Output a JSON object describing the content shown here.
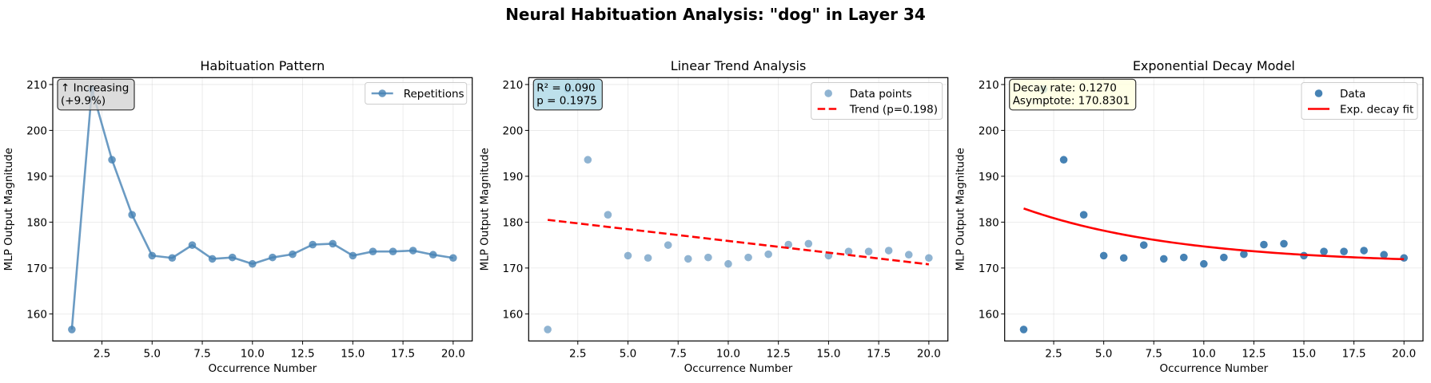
{
  "figure": {
    "suptitle": "Neural Habituation Analysis: \"dog\" in Layer 34"
  },
  "colors": {
    "data_blue": "#4682b4",
    "trend_red": "#ff0000",
    "box_gray": "#d3d3d3",
    "box_lightblue": "#add8e6",
    "box_lightyellow": "#ffffe0"
  },
  "chart_data": [
    {
      "type": "line",
      "title": "Habituation Pattern",
      "xlabel": "Occurrence Number",
      "ylabel": "MLP Output Magnitude",
      "xlim": [
        0.05,
        20.95
      ],
      "ylim": [
        154.1,
        211.5
      ],
      "xticks": [
        2.5,
        5.0,
        7.5,
        10.0,
        12.5,
        15.0,
        17.5,
        20.0
      ],
      "xtick_labels": [
        "2.5",
        "5.0",
        "7.5",
        "10.0",
        "12.5",
        "15.0",
        "17.5",
        "20.0"
      ],
      "yticks": [
        160,
        170,
        180,
        190,
        200,
        210
      ],
      "ytick_labels": [
        "160",
        "170",
        "180",
        "190",
        "200",
        "210"
      ],
      "grid": true,
      "legend": {
        "placement": "top-right",
        "entries": [
          {
            "label": "Repetitions",
            "style": "line-marker"
          }
        ]
      },
      "annotation": {
        "lines": [
          "↑ Increasing",
          "(+9.9%)"
        ],
        "placement": "top-left",
        "bg": "#d3d3d3"
      },
      "series": [
        {
          "name": "Repetitions",
          "x": [
            1,
            2,
            3,
            4,
            5,
            6,
            7,
            8,
            9,
            10,
            11,
            12,
            13,
            14,
            15,
            16,
            17,
            18,
            19,
            20
          ],
          "y": [
            156.6,
            209.0,
            193.6,
            181.6,
            172.7,
            172.2,
            175.0,
            172.0,
            172.3,
            170.9,
            172.3,
            173.0,
            175.1,
            175.3,
            172.7,
            173.6,
            173.6,
            173.8,
            172.9,
            172.2
          ]
        }
      ]
    },
    {
      "type": "scatter",
      "title": "Linear Trend Analysis",
      "xlabel": "Occurrence Number",
      "ylabel": "MLP Output Magnitude",
      "xlim": [
        0.05,
        20.95
      ],
      "ylim": [
        154.1,
        211.5
      ],
      "xticks": [
        2.5,
        5.0,
        7.5,
        10.0,
        12.5,
        15.0,
        17.5,
        20.0
      ],
      "xtick_labels": [
        "2.5",
        "5.0",
        "7.5",
        "10.0",
        "12.5",
        "15.0",
        "17.5",
        "20.0"
      ],
      "yticks": [
        160,
        170,
        180,
        190,
        200,
        210
      ],
      "ytick_labels": [
        "160",
        "170",
        "180",
        "190",
        "200",
        "210"
      ],
      "grid": true,
      "legend": {
        "placement": "top-right",
        "entries": [
          {
            "label": "Data points",
            "style": "marker"
          },
          {
            "label": "Trend (p=0.198)",
            "style": "dashed-line"
          }
        ]
      },
      "annotation": {
        "lines": [
          "R² = 0.090",
          "p = 0.1975"
        ],
        "placement": "top-left",
        "bg": "#add8e6"
      },
      "series": [
        {
          "name": "Data points",
          "x": [
            1,
            2,
            3,
            4,
            5,
            6,
            7,
            8,
            9,
            10,
            11,
            12,
            13,
            14,
            15,
            16,
            17,
            18,
            19,
            20
          ],
          "y": [
            156.6,
            209.0,
            193.6,
            181.6,
            172.7,
            172.2,
            175.0,
            172.0,
            172.3,
            170.9,
            172.3,
            173.0,
            175.1,
            175.3,
            172.7,
            173.6,
            173.6,
            173.8,
            172.9,
            172.2
          ]
        },
        {
          "name": "Trend (p=0.198)",
          "x": [
            1,
            20
          ],
          "y": [
            180.5,
            170.8
          ]
        }
      ],
      "stats": {
        "r_squared": 0.09,
        "p_value": 0.1975
      }
    },
    {
      "type": "scatter",
      "title": "Exponential Decay Model",
      "xlabel": "Occurrence Number",
      "ylabel": "MLP Output Magnitude",
      "xlim": [
        0.05,
        20.95
      ],
      "ylim": [
        154.1,
        211.5
      ],
      "xticks": [
        2.5,
        5.0,
        7.5,
        10.0,
        12.5,
        15.0,
        17.5,
        20.0
      ],
      "xtick_labels": [
        "2.5",
        "5.0",
        "7.5",
        "10.0",
        "12.5",
        "15.0",
        "17.5",
        "20.0"
      ],
      "yticks": [
        160,
        170,
        180,
        190,
        200,
        210
      ],
      "ytick_labels": [
        "160",
        "170",
        "180",
        "190",
        "200",
        "210"
      ],
      "grid": true,
      "legend": {
        "placement": "top-right",
        "entries": [
          {
            "label": "Data",
            "style": "marker"
          },
          {
            "label": "Exp. decay fit",
            "style": "solid-line"
          }
        ]
      },
      "annotation": {
        "lines": [
          "Decay rate: 0.1270",
          "Asymptote: 170.8301"
        ],
        "placement": "top-left",
        "bg": "#ffffe0"
      },
      "series": [
        {
          "name": "Data",
          "x": [
            1,
            2,
            3,
            4,
            5,
            6,
            7,
            8,
            9,
            10,
            11,
            12,
            13,
            14,
            15,
            16,
            17,
            18,
            19,
            20
          ],
          "y": [
            156.6,
            209.0,
            193.6,
            181.6,
            172.7,
            172.2,
            175.0,
            172.0,
            172.3,
            170.9,
            172.3,
            173.0,
            175.1,
            175.3,
            172.7,
            173.6,
            173.6,
            173.8,
            172.9,
            172.2
          ]
        },
        {
          "name": "Exp. decay fit",
          "model": {
            "amplitude": 13.8,
            "rate": 0.127,
            "asymptote": 170.8301
          },
          "x_range": [
            1,
            20
          ]
        }
      ]
    }
  ]
}
